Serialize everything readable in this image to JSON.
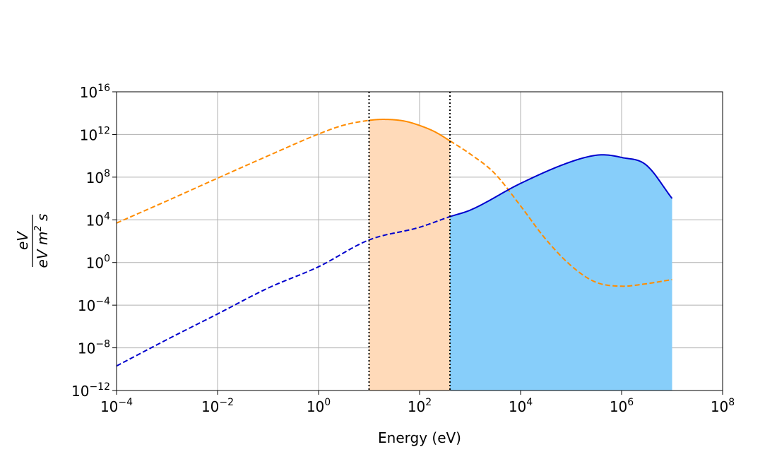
{
  "chart_data": {
    "type": "line",
    "title": "",
    "xlabel": "Energy (eV)",
    "ylabel": {
      "numerator": "eV",
      "denominator_prefix": "eV m",
      "denominator_exp": "2",
      "denominator_suffix": " s"
    },
    "xscale": "log",
    "yscale": "log",
    "xlim": [
      0.0001,
      100000000
    ],
    "ylim": [
      1e-12,
      1e+16
    ],
    "x_ticks": [
      {
        "base": "10",
        "exp": "−4"
      },
      {
        "base": "10",
        "exp": "−2"
      },
      {
        "base": "10",
        "exp": "0"
      },
      {
        "base": "10",
        "exp": "2"
      },
      {
        "base": "10",
        "exp": "4"
      },
      {
        "base": "10",
        "exp": "6"
      },
      {
        "base": "10",
        "exp": "8"
      }
    ],
    "y_ticks": [
      {
        "base": "10",
        "exp": "−12"
      },
      {
        "base": "10",
        "exp": "−8"
      },
      {
        "base": "10",
        "exp": "−4"
      },
      {
        "base": "10",
        "exp": "0"
      },
      {
        "base": "10",
        "exp": "4"
      },
      {
        "base": "10",
        "exp": "8"
      },
      {
        "base": "10",
        "exp": "12"
      },
      {
        "base": "10",
        "exp": "16"
      }
    ],
    "grid": true,
    "legend": "none",
    "vertical_lines": [
      10,
      400
    ],
    "series": [
      {
        "color": "#ff8c00",
        "fill": "#ffdab9",
        "style": "dashed-outside-band",
        "solid_range": [
          10,
          400
        ],
        "x": [
          0.0001,
          0.001,
          0.01,
          0.1,
          1,
          3,
          10,
          20,
          50,
          100,
          200,
          400,
          1000,
          3000,
          10000,
          30000,
          100000,
          300000,
          1000000,
          3000000,
          10000000
        ],
        "y": [
          5000.0,
          600000.0,
          80000000.0,
          10000000000.0,
          1100000000000.0,
          7000000000000.0,
          21000000000000.0,
          26000000000000.0,
          18000000000000.0,
          7000000000000.0,
          1800000000000.0,
          250000000000.0,
          15000000000.0,
          250000000.0,
          200000.0,
          200.0,
          0.5,
          0.015,
          0.006,
          0.01,
          0.025
        ]
      },
      {
        "color": "#0000cd",
        "fill": "#87cefa",
        "style": "dashed-below-solid",
        "solid_from": 400,
        "x": [
          0.0001,
          0.001,
          0.01,
          0.1,
          1,
          10,
          100,
          400,
          1000,
          10000,
          100000,
          300000,
          500000,
          1000000,
          3000000,
          10000000
        ],
        "y": [
          2e-10,
          6e-08,
          1.5e-05,
          0.004,
          0.4,
          130.0,
          2000.0,
          20000.0,
          80000.0,
          26000000.0,
          2800000000.0,
          11000000000.0,
          12000000000.0,
          7000000000.0,
          1500000000.0,
          1000000.0
        ]
      }
    ]
  }
}
